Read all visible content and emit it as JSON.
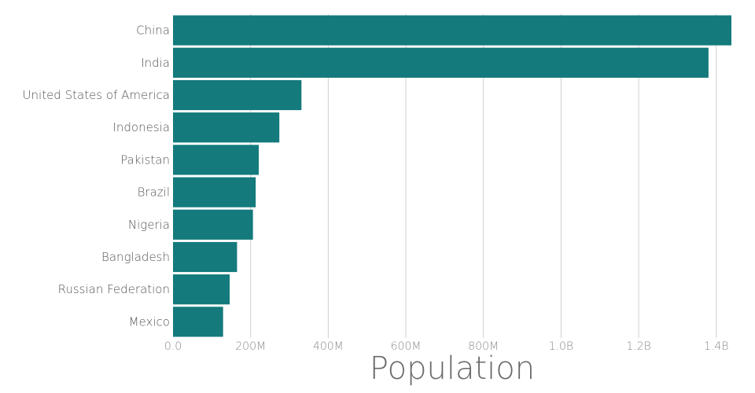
{
  "chart_data": {
    "type": "bar",
    "orientation": "horizontal",
    "categories": [
      "China",
      "India",
      "United States of America",
      "Indonesia",
      "Pakistan",
      "Brazil",
      "Nigeria",
      "Bangladesh",
      "Russian Federation",
      "Mexico"
    ],
    "values": [
      1439000000,
      1380000000,
      331000000,
      274000000,
      221000000,
      213000000,
      206000000,
      165000000,
      146000000,
      129000000
    ],
    "xlabel": "Population",
    "ylabel": "",
    "xlim": [
      0,
      1439000000
    ],
    "xticks": [
      0,
      200000000,
      400000000,
      600000000,
      800000000,
      1000000000,
      1200000000,
      1400000000
    ],
    "xtick_labels": [
      "0.0",
      "200M",
      "400M",
      "600M",
      "800M",
      "1.0B",
      "1.2B",
      "1.4B"
    ],
    "grid": "vertical",
    "colors": {
      "bar": "#147a7c",
      "grid": "#d0d0d0"
    }
  }
}
